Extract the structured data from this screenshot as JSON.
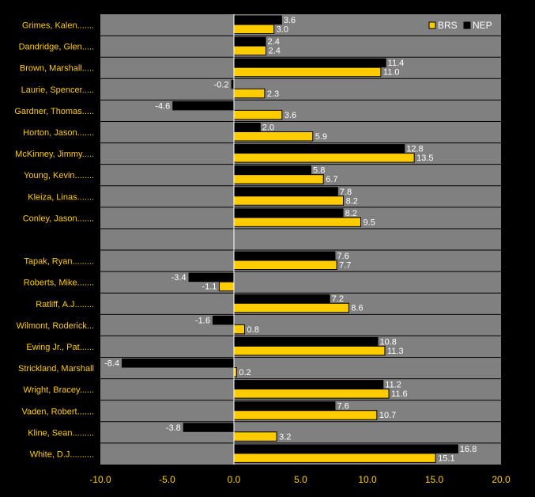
{
  "chart_data": {
    "type": "bar",
    "orientation": "horizontal",
    "xlim": [
      -10,
      20
    ],
    "x_ticks": [
      -10,
      -5,
      0,
      5,
      10,
      15,
      20
    ],
    "x_tick_labels": [
      "-10.0",
      "-5.0",
      "0.0",
      "5.0",
      "10.0",
      "15.0",
      "20.0"
    ],
    "legend_position": "top-right",
    "grid": true,
    "colors": {
      "background": "#000000",
      "plot_area": "#808080",
      "brs": "#ffcc00",
      "nep": "#000000",
      "text": "#ffcc00",
      "value_label": "#ffffff",
      "gridline": "#000000",
      "zero_line": "#ffffff"
    },
    "series": [
      {
        "name": "BRS",
        "color": "#ffcc00"
      },
      {
        "name": "NEP",
        "color": "#000000"
      }
    ],
    "categories": [
      "Grimes, Kalen.......",
      "Dandridge, Glen.....",
      "Brown, Marshall.....",
      "Laurie, Spencer.....",
      "Gardner, Thomas.....",
      "Horton, Jason.......",
      "McKinney, Jimmy.....",
      "Young, Kevin........",
      "Kleiza, Linas.......",
      "Conley, Jason.......",
      "",
      "Tapak, Ryan.........",
      "Roberts, Mike.......",
      "Ratliff, A.J........",
      "Wilmont, Roderick...",
      "Ewing Jr., Pat......",
      "Strickland, Marshall",
      "Wright, Bracey......",
      "Vaden, Robert.......",
      "Kline, Sean.........",
      "White, D.J.........."
    ],
    "nep": [
      3.6,
      2.4,
      11.4,
      -0.2,
      -4.6,
      2.0,
      12.8,
      5.8,
      7.8,
      8.2,
      null,
      7.6,
      -3.4,
      7.2,
      -1.6,
      10.8,
      -8.4,
      11.2,
      7.6,
      -3.8,
      16.8
    ],
    "brs": [
      3.0,
      2.4,
      11.0,
      2.3,
      3.6,
      5.9,
      13.5,
      6.7,
      8.2,
      9.5,
      null,
      7.7,
      -1.1,
      8.6,
      0.8,
      11.3,
      0.2,
      11.6,
      10.7,
      3.2,
      15.1
    ],
    "nep_labels": [
      "3.6",
      "2.4",
      "11.4",
      "-0.2",
      "-4.6",
      "2.0",
      "12.8",
      "5.8",
      "7.8",
      "8.2",
      "",
      "7.6",
      "-3.4",
      "7.2",
      "-1.6",
      "10.8",
      "-8.4",
      "11.2",
      "7.6",
      "-3.8",
      "16.8"
    ],
    "brs_labels": [
      "3.0",
      "2.4",
      "11.0",
      "2.3",
      "3.6",
      "5.9",
      "13.5",
      "6.7",
      "8.2",
      "9.5",
      "",
      "7.7",
      "-1.1",
      "8.6",
      "0.8",
      "11.3",
      "0.2",
      "11.6",
      "10.7",
      "3.2",
      "15.1"
    ]
  }
}
